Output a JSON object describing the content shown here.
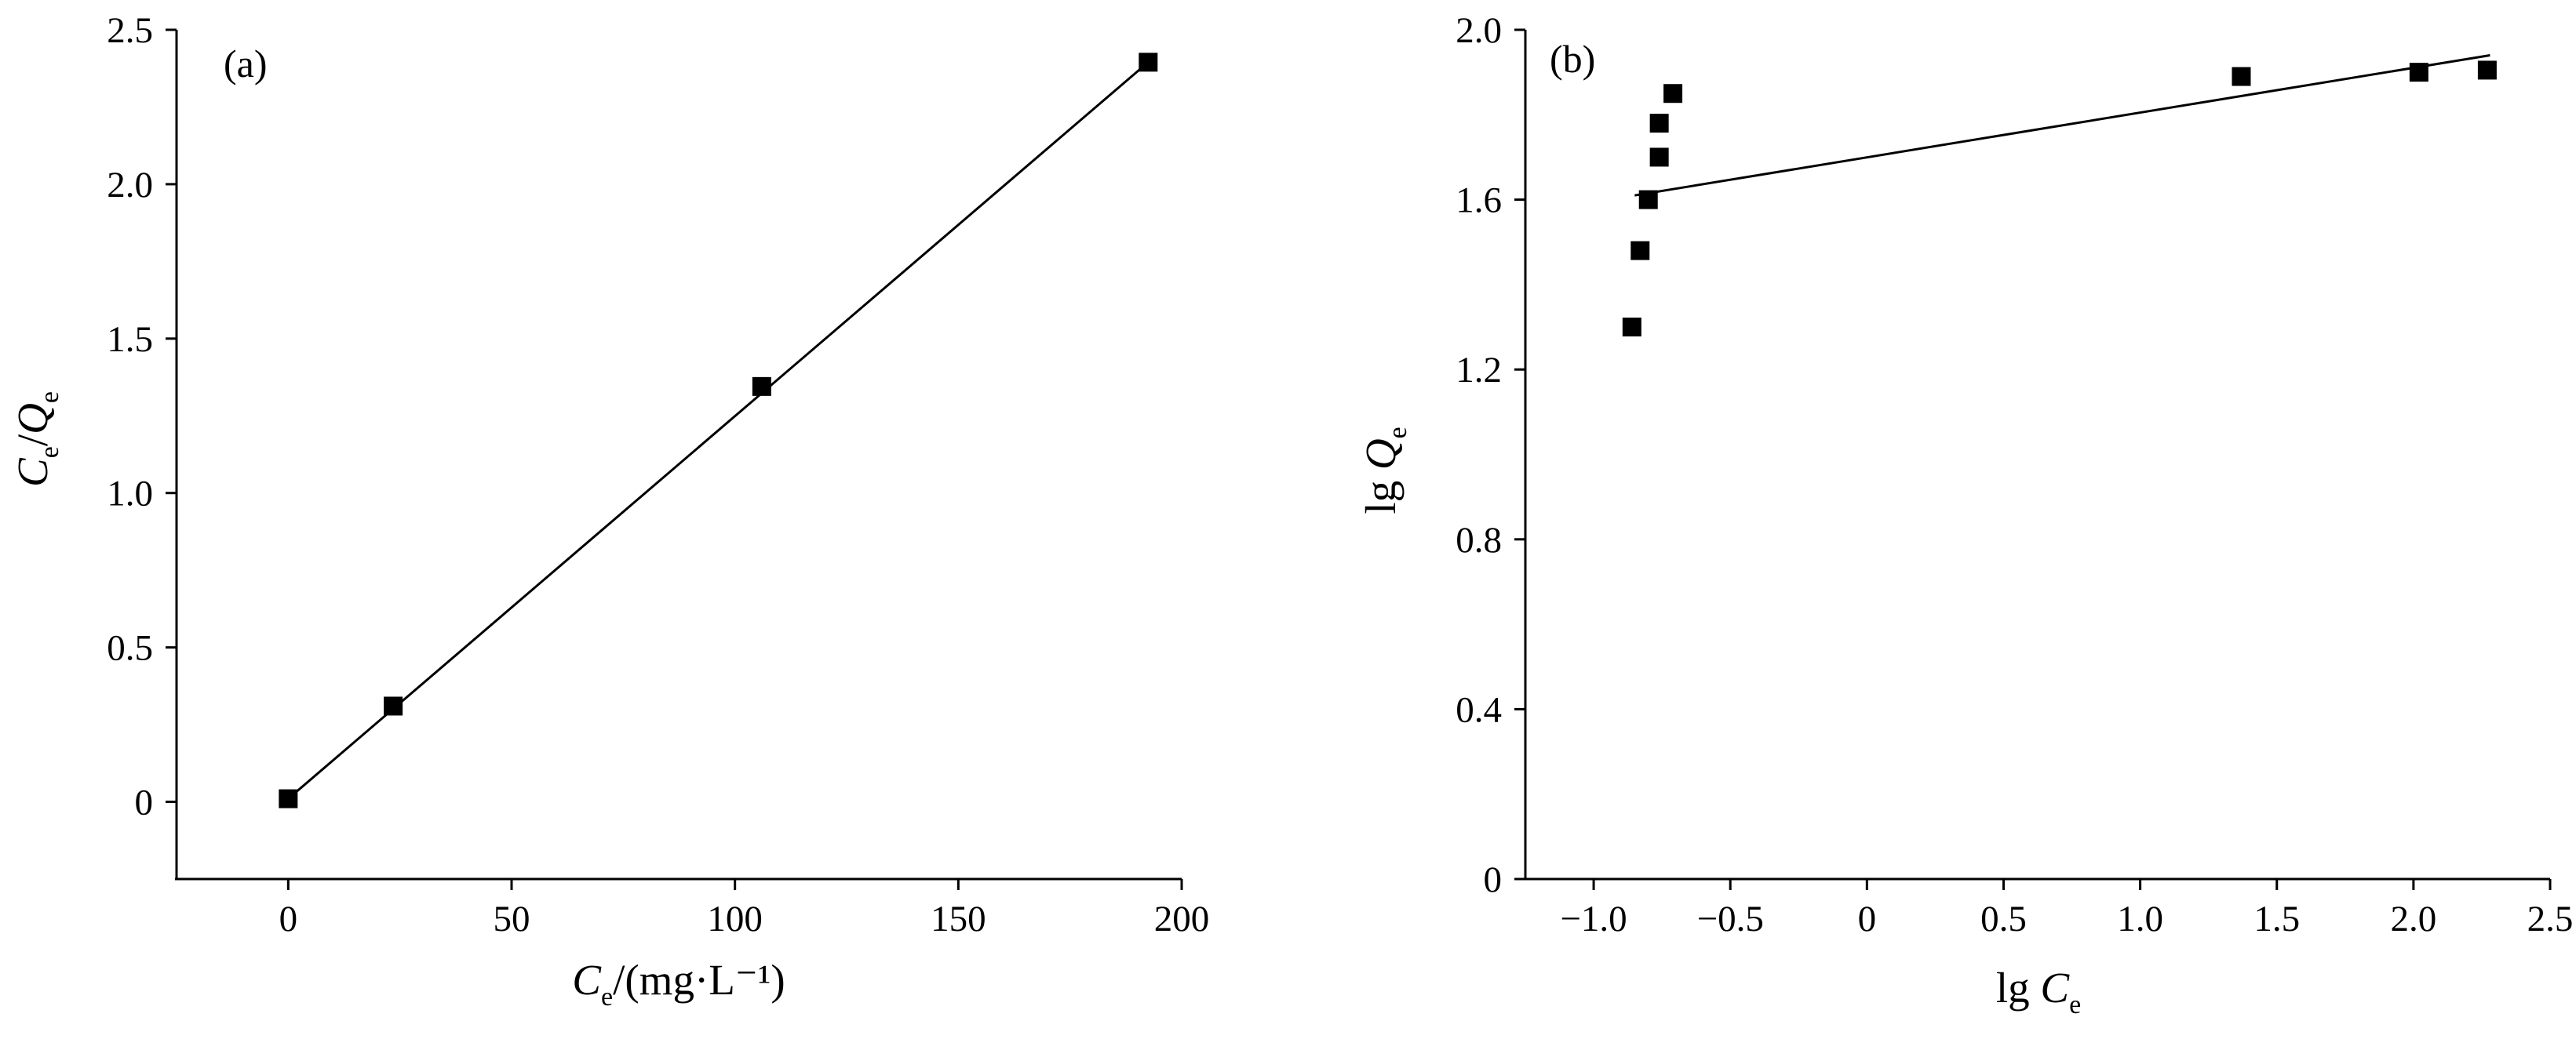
{
  "chart_data": [
    {
      "type": "scatter",
      "panel_label": "(a)",
      "xlabel": {
        "main": "C",
        "sub": "e",
        "rest": "/(mg·L⁻¹)"
      },
      "ylabel": {
        "a": "C",
        "a_sub": "e",
        "sep": "/",
        "b": "Q",
        "b_sub": "e"
      },
      "xlim": [
        -25,
        200
      ],
      "ylim": [
        -0.25,
        2.5
      ],
      "xticks": [
        0,
        50,
        100,
        150,
        200
      ],
      "xtick_labels": [
        "0",
        "50",
        "100",
        "150",
        "200"
      ],
      "yticks": [
        0,
        0.5,
        1.0,
        1.5,
        2.0,
        2.5
      ],
      "ytick_labels": [
        "0",
        "0.5",
        "1.0",
        "1.5",
        "2.0",
        "2.5"
      ],
      "grid": false,
      "series": [
        {
          "marker": "square",
          "x": [
            0,
            23.5,
            106,
            192.5
          ],
          "y": [
            0.01,
            0.31,
            1.345,
            2.395
          ]
        }
      ],
      "fit_line": {
        "x": [
          0,
          192.5
        ],
        "y": [
          0.01,
          2.395
        ]
      }
    },
    {
      "type": "scatter",
      "panel_label": "(b)",
      "xlabel": {
        "pre": "lg ",
        "main": "C",
        "sub": "e"
      },
      "ylabel": {
        "pre": "lg ",
        "main": "Q",
        "sub": "e"
      },
      "xlim": [
        -1.25,
        2.5
      ],
      "ylim": [
        0,
        2.0
      ],
      "xticks": [
        -1.0,
        -0.5,
        0,
        0.5,
        1.0,
        1.5,
        2.0,
        2.5
      ],
      "xtick_labels": [
        "−1.0",
        "−0.5",
        "0",
        "0.5",
        "1.0",
        "1.5",
        "2.0",
        "2.5"
      ],
      "yticks": [
        0,
        0.4,
        0.8,
        1.2,
        1.6,
        2.0
      ],
      "ytick_labels": [
        "0",
        "0.4",
        "0.8",
        "1.2",
        "1.6",
        "2.0"
      ],
      "grid": false,
      "series": [
        {
          "marker": "square",
          "x": [
            -0.86,
            -0.83,
            -0.8,
            -0.76,
            -0.76,
            -0.71,
            1.37,
            2.02,
            2.27
          ],
          "y": [
            1.3,
            1.48,
            1.6,
            1.7,
            1.78,
            1.85,
            1.89,
            1.9,
            1.905
          ]
        }
      ],
      "fit_line": {
        "x": [
          -0.85,
          2.28
        ],
        "y": [
          1.61,
          1.94
        ]
      }
    }
  ]
}
